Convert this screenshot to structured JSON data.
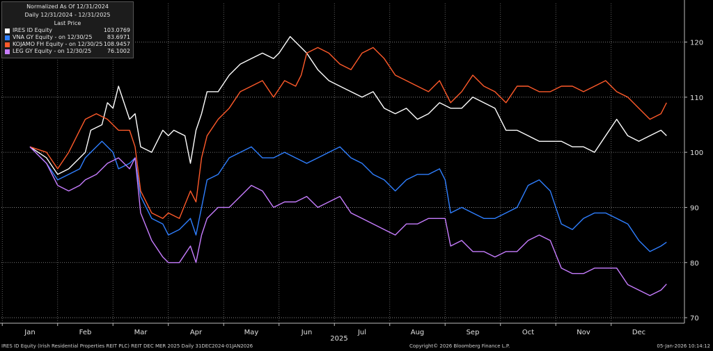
{
  "legend": {
    "header_lines": [
      "Normalized As Of 12/31/2024",
      "Daily 12/31/2024 - 12/31/2025",
      "Last Price"
    ],
    "items": [
      {
        "name": "IRES ID Equity",
        "value": "103.0769",
        "color": "#ffffff"
      },
      {
        "name": "VNA GY Equity -  on 12/30/25",
        "value": "83.6971",
        "color": "#2f7fff"
      },
      {
        "name": "KOJAMO FH Equity -  on 12/30/25",
        "value": "108.9457",
        "color": "#ff5a2a"
      },
      {
        "name": "LEG GY Equity -  on 12/30/25",
        "value": "76.1002",
        "color": "#c77dff"
      }
    ]
  },
  "footer": {
    "left": "IRES ID Equity (Irish Residential Properties REIT PLC) REIT DEC MER 2025 Daily 31DEC2024-01JAN2026",
    "center": "Copyright© 2026 Bloomberg Finance L.P.",
    "right": "05-Jan-2026 10:14:12"
  },
  "chart_data": {
    "type": "line",
    "title": "",
    "x_labels": [
      "Jan",
      "Feb",
      "Mar",
      "Apr",
      "May",
      "Jun",
      "Jul",
      "Aug",
      "Sep",
      "Oct",
      "Nov",
      "Dec"
    ],
    "x_year_label": "2025",
    "y_ticks": [
      70,
      80,
      90,
      100,
      110,
      120
    ],
    "ylim": [
      69,
      127
    ],
    "grid": true,
    "series": [
      {
        "name": "IRES ID Equity",
        "color": "#ffffff",
        "points": [
          [
            0,
            101
          ],
          [
            0.3,
            99
          ],
          [
            0.5,
            96
          ],
          [
            0.7,
            97
          ],
          [
            0.9,
            99
          ],
          [
            1.0,
            100
          ],
          [
            1.1,
            104
          ],
          [
            1.3,
            105
          ],
          [
            1.4,
            109
          ],
          [
            1.5,
            108
          ],
          [
            1.6,
            112
          ],
          [
            1.8,
            106
          ],
          [
            1.9,
            107
          ],
          [
            2.0,
            101
          ],
          [
            2.2,
            100
          ],
          [
            2.4,
            104
          ],
          [
            2.5,
            103
          ],
          [
            2.6,
            104
          ],
          [
            2.8,
            103
          ],
          [
            2.9,
            98
          ],
          [
            3.0,
            104
          ],
          [
            3.1,
            107
          ],
          [
            3.2,
            111
          ],
          [
            3.4,
            111
          ],
          [
            3.6,
            114
          ],
          [
            3.8,
            116
          ],
          [
            4.0,
            117
          ],
          [
            4.2,
            118
          ],
          [
            4.4,
            117
          ],
          [
            4.5,
            118
          ],
          [
            4.7,
            121
          ],
          [
            4.8,
            120
          ],
          [
            5.0,
            118
          ],
          [
            5.2,
            115
          ],
          [
            5.4,
            113
          ],
          [
            5.6,
            112
          ],
          [
            5.8,
            111
          ],
          [
            6.0,
            110
          ],
          [
            6.2,
            111
          ],
          [
            6.4,
            108
          ],
          [
            6.6,
            107
          ],
          [
            6.8,
            108
          ],
          [
            7.0,
            106
          ],
          [
            7.2,
            107
          ],
          [
            7.4,
            109
          ],
          [
            7.6,
            108
          ],
          [
            7.8,
            108
          ],
          [
            8.0,
            110
          ],
          [
            8.2,
            109
          ],
          [
            8.4,
            108
          ],
          [
            8.6,
            104
          ],
          [
            8.8,
            104
          ],
          [
            9.0,
            103
          ],
          [
            9.2,
            102
          ],
          [
            9.4,
            102
          ],
          [
            9.6,
            102
          ],
          [
            9.8,
            101
          ],
          [
            10.0,
            101
          ],
          [
            10.2,
            100
          ],
          [
            10.4,
            103
          ],
          [
            10.6,
            106
          ],
          [
            10.8,
            103
          ],
          [
            11.0,
            102
          ],
          [
            11.2,
            103
          ],
          [
            11.4,
            104
          ],
          [
            11.5,
            103
          ]
        ]
      },
      {
        "name": "VNA GY Equity -  on 12/30/25",
        "color": "#2f7fff",
        "points": [
          [
            0,
            101
          ],
          [
            0.3,
            98
          ],
          [
            0.5,
            95
          ],
          [
            0.7,
            96
          ],
          [
            0.9,
            97
          ],
          [
            1.0,
            99
          ],
          [
            1.1,
            100
          ],
          [
            1.3,
            102
          ],
          [
            1.5,
            100
          ],
          [
            1.6,
            97
          ],
          [
            1.8,
            98
          ],
          [
            1.9,
            99
          ],
          [
            2.0,
            92
          ],
          [
            2.2,
            88
          ],
          [
            2.4,
            87
          ],
          [
            2.5,
            85
          ],
          [
            2.7,
            86
          ],
          [
            2.9,
            88
          ],
          [
            3.0,
            85
          ],
          [
            3.1,
            90
          ],
          [
            3.2,
            95
          ],
          [
            3.4,
            96
          ],
          [
            3.6,
            99
          ],
          [
            3.8,
            100
          ],
          [
            4.0,
            101
          ],
          [
            4.2,
            99
          ],
          [
            4.4,
            99
          ],
          [
            4.6,
            100
          ],
          [
            4.8,
            99
          ],
          [
            5.0,
            98
          ],
          [
            5.2,
            99
          ],
          [
            5.4,
            100
          ],
          [
            5.6,
            101
          ],
          [
            5.8,
            99
          ],
          [
            6.0,
            98
          ],
          [
            6.2,
            96
          ],
          [
            6.4,
            95
          ],
          [
            6.6,
            93
          ],
          [
            6.8,
            95
          ],
          [
            7.0,
            96
          ],
          [
            7.2,
            96
          ],
          [
            7.4,
            97
          ],
          [
            7.5,
            95
          ],
          [
            7.6,
            89
          ],
          [
            7.8,
            90
          ],
          [
            8.0,
            89
          ],
          [
            8.2,
            88
          ],
          [
            8.4,
            88
          ],
          [
            8.6,
            89
          ],
          [
            8.8,
            90
          ],
          [
            9.0,
            94
          ],
          [
            9.2,
            95
          ],
          [
            9.4,
            93
          ],
          [
            9.6,
            87
          ],
          [
            9.8,
            86
          ],
          [
            10.0,
            88
          ],
          [
            10.2,
            89
          ],
          [
            10.4,
            89
          ],
          [
            10.6,
            88
          ],
          [
            10.8,
            87
          ],
          [
            11.0,
            84
          ],
          [
            11.2,
            82
          ],
          [
            11.4,
            83
          ],
          [
            11.5,
            83.7
          ]
        ]
      },
      {
        "name": "KOJAMO FH Equity -  on 12/30/25",
        "color": "#ff5a2a",
        "points": [
          [
            0,
            101
          ],
          [
            0.3,
            100
          ],
          [
            0.5,
            97
          ],
          [
            0.7,
            100
          ],
          [
            0.9,
            104
          ],
          [
            1.0,
            106
          ],
          [
            1.2,
            107
          ],
          [
            1.4,
            106
          ],
          [
            1.6,
            104
          ],
          [
            1.8,
            104
          ],
          [
            1.9,
            101
          ],
          [
            2.0,
            93
          ],
          [
            2.2,
            89
          ],
          [
            2.4,
            88
          ],
          [
            2.5,
            89
          ],
          [
            2.7,
            88
          ],
          [
            2.9,
            93
          ],
          [
            3.0,
            91
          ],
          [
            3.1,
            99
          ],
          [
            3.2,
            103
          ],
          [
            3.4,
            106
          ],
          [
            3.6,
            108
          ],
          [
            3.8,
            111
          ],
          [
            4.0,
            112
          ],
          [
            4.2,
            113
          ],
          [
            4.4,
            110
          ],
          [
            4.6,
            113
          ],
          [
            4.8,
            112
          ],
          [
            4.9,
            114
          ],
          [
            5.0,
            118
          ],
          [
            5.2,
            119
          ],
          [
            5.4,
            118
          ],
          [
            5.6,
            116
          ],
          [
            5.8,
            115
          ],
          [
            6.0,
            118
          ],
          [
            6.2,
            119
          ],
          [
            6.4,
            117
          ],
          [
            6.6,
            114
          ],
          [
            6.8,
            113
          ],
          [
            7.0,
            112
          ],
          [
            7.2,
            111
          ],
          [
            7.4,
            113
          ],
          [
            7.6,
            109
          ],
          [
            7.8,
            111
          ],
          [
            8.0,
            114
          ],
          [
            8.2,
            112
          ],
          [
            8.4,
            111
          ],
          [
            8.6,
            109
          ],
          [
            8.8,
            112
          ],
          [
            9.0,
            112
          ],
          [
            9.2,
            111
          ],
          [
            9.4,
            111
          ],
          [
            9.6,
            112
          ],
          [
            9.8,
            112
          ],
          [
            10.0,
            111
          ],
          [
            10.2,
            112
          ],
          [
            10.4,
            113
          ],
          [
            10.6,
            111
          ],
          [
            10.8,
            110
          ],
          [
            11.0,
            108
          ],
          [
            11.2,
            106
          ],
          [
            11.4,
            107
          ],
          [
            11.5,
            109
          ]
        ]
      },
      {
        "name": "LEG GY Equity -  on 12/30/25",
        "color": "#c77dff",
        "points": [
          [
            0,
            101
          ],
          [
            0.3,
            98
          ],
          [
            0.5,
            94
          ],
          [
            0.7,
            93
          ],
          [
            0.9,
            94
          ],
          [
            1.0,
            95
          ],
          [
            1.2,
            96
          ],
          [
            1.4,
            98
          ],
          [
            1.6,
            99
          ],
          [
            1.8,
            97
          ],
          [
            1.9,
            99
          ],
          [
            2.0,
            89
          ],
          [
            2.2,
            84
          ],
          [
            2.4,
            81
          ],
          [
            2.5,
            80
          ],
          [
            2.7,
            80
          ],
          [
            2.9,
            83
          ],
          [
            3.0,
            80
          ],
          [
            3.1,
            85
          ],
          [
            3.2,
            88
          ],
          [
            3.4,
            90
          ],
          [
            3.6,
            90
          ],
          [
            3.8,
            92
          ],
          [
            4.0,
            94
          ],
          [
            4.2,
            93
          ],
          [
            4.4,
            90
          ],
          [
            4.6,
            91
          ],
          [
            4.8,
            91
          ],
          [
            5.0,
            92
          ],
          [
            5.2,
            90
          ],
          [
            5.4,
            91
          ],
          [
            5.6,
            92
          ],
          [
            5.8,
            89
          ],
          [
            6.0,
            88
          ],
          [
            6.2,
            87
          ],
          [
            6.4,
            86
          ],
          [
            6.6,
            85
          ],
          [
            6.8,
            87
          ],
          [
            7.0,
            87
          ],
          [
            7.2,
            88
          ],
          [
            7.4,
            88
          ],
          [
            7.5,
            88
          ],
          [
            7.6,
            83
          ],
          [
            7.8,
            84
          ],
          [
            8.0,
            82
          ],
          [
            8.2,
            82
          ],
          [
            8.4,
            81
          ],
          [
            8.6,
            82
          ],
          [
            8.8,
            82
          ],
          [
            9.0,
            84
          ],
          [
            9.2,
            85
          ],
          [
            9.4,
            84
          ],
          [
            9.6,
            79
          ],
          [
            9.8,
            78
          ],
          [
            10.0,
            78
          ],
          [
            10.2,
            79
          ],
          [
            10.4,
            79
          ],
          [
            10.6,
            79
          ],
          [
            10.8,
            76
          ],
          [
            11.0,
            75
          ],
          [
            11.2,
            74
          ],
          [
            11.4,
            75
          ],
          [
            11.5,
            76.1
          ]
        ]
      }
    ]
  }
}
